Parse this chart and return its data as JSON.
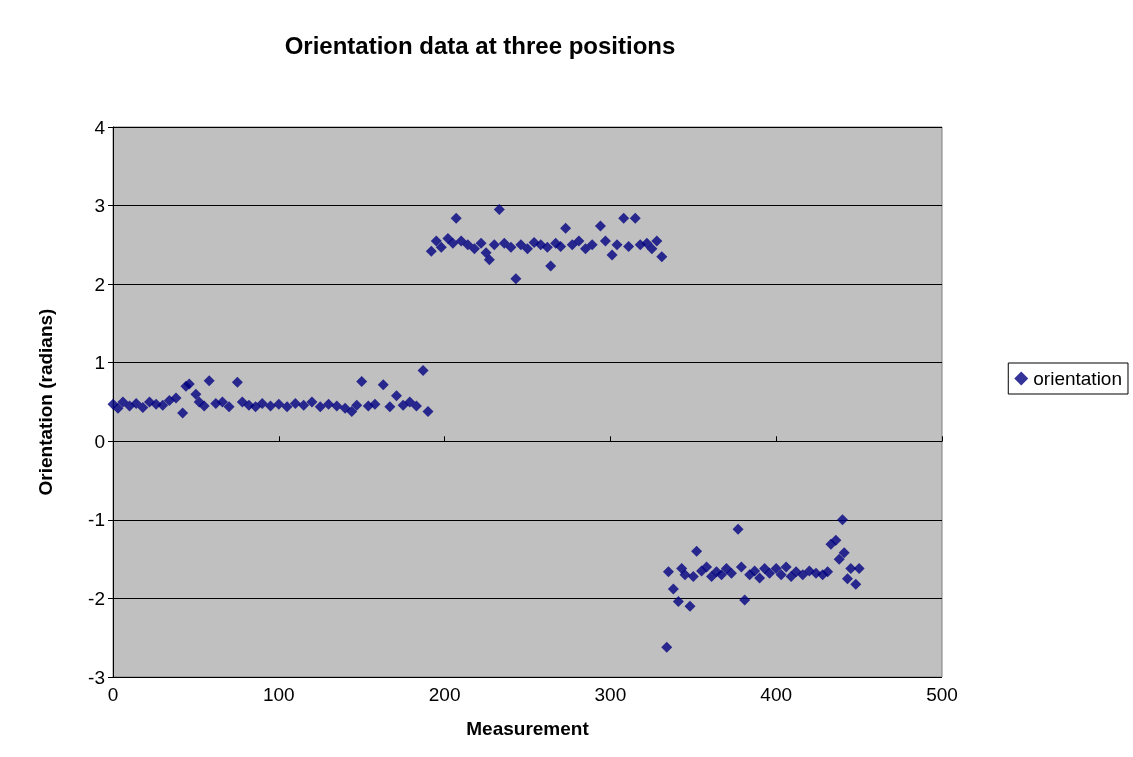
{
  "chart_data": {
    "type": "scatter",
    "title": "Orientation data at three positions",
    "xlabel": "Measurement",
    "ylabel": "Orientation (radians)",
    "x": [
      0,
      3,
      6,
      10,
      14,
      18,
      22,
      26,
      30,
      34,
      38,
      42,
      44,
      46,
      50,
      52,
      55,
      58,
      62,
      66,
      70,
      75,
      78,
      82,
      86,
      90,
      95,
      100,
      105,
      110,
      115,
      120,
      125,
      130,
      135,
      140,
      144,
      147,
      150,
      154,
      158,
      163,
      167,
      171,
      175,
      179,
      183,
      187,
      190,
      192,
      195,
      198,
      202,
      205,
      207,
      210,
      214,
      218,
      222,
      225,
      227,
      230,
      233,
      236,
      240,
      243,
      246,
      250,
      254,
      258,
      262,
      264,
      267,
      270,
      273,
      277,
      281,
      285,
      289,
      294,
      297,
      301,
      304,
      308,
      311,
      315,
      318,
      322,
      325,
      328,
      331,
      334,
      335,
      338,
      341,
      343,
      345,
      348,
      350,
      352,
      355,
      358,
      361,
      364,
      367,
      370,
      373,
      377,
      379,
      381,
      384,
      387,
      390,
      393,
      396,
      400,
      403,
      406,
      409,
      412,
      416,
      420,
      424,
      428,
      431,
      433,
      436,
      438,
      440,
      441,
      443,
      445,
      448,
      450
    ],
    "series": [
      {
        "name": "orientation",
        "color": "#000080",
        "values": [
          0.47,
          0.42,
          0.5,
          0.45,
          0.48,
          0.43,
          0.5,
          0.47,
          0.46,
          0.52,
          0.55,
          0.36,
          0.7,
          0.73,
          0.6,
          0.5,
          0.45,
          0.77,
          0.48,
          0.5,
          0.44,
          0.75,
          0.5,
          0.46,
          0.44,
          0.48,
          0.45,
          0.47,
          0.44,
          0.48,
          0.46,
          0.5,
          0.44,
          0.47,
          0.45,
          0.42,
          0.38,
          0.46,
          0.76,
          0.45,
          0.47,
          0.72,
          0.44,
          0.58,
          0.46,
          0.5,
          0.45,
          0.9,
          0.38,
          2.42,
          2.55,
          2.47,
          2.58,
          2.52,
          2.84,
          2.55,
          2.5,
          2.45,
          2.52,
          2.4,
          2.31,
          2.5,
          2.95,
          2.52,
          2.47,
          2.07,
          2.5,
          2.45,
          2.53,
          2.5,
          2.47,
          2.23,
          2.52,
          2.48,
          2.71,
          2.5,
          2.55,
          2.45,
          2.5,
          2.74,
          2.55,
          2.37,
          2.5,
          2.84,
          2.48,
          2.84,
          2.5,
          2.52,
          2.45,
          2.55,
          2.35,
          -2.62,
          -1.66,
          -1.88,
          -2.04,
          -1.62,
          -1.7,
          -2.1,
          -1.72,
          -1.4,
          -1.65,
          -1.6,
          -1.72,
          -1.66,
          -1.7,
          -1.62,
          -1.68,
          -1.12,
          -1.6,
          -2.02,
          -1.7,
          -1.65,
          -1.74,
          -1.62,
          -1.68,
          -1.62,
          -1.7,
          -1.6,
          -1.72,
          -1.66,
          -1.7,
          -1.65,
          -1.68,
          -1.7,
          -1.66,
          -1.31,
          -1.26,
          -1.5,
          -1.0,
          -1.42,
          -1.75,
          -1.62,
          -1.82,
          -1.62
        ]
      }
    ],
    "xlim": [
      0,
      500
    ],
    "xticks": [
      0,
      100,
      200,
      300,
      400,
      500
    ],
    "ylim": [
      -3,
      4
    ],
    "yticks": [
      -3,
      -2,
      -1,
      0,
      1,
      2,
      3,
      4
    ],
    "grid": "y",
    "legend": "right",
    "marker": "diamond"
  }
}
